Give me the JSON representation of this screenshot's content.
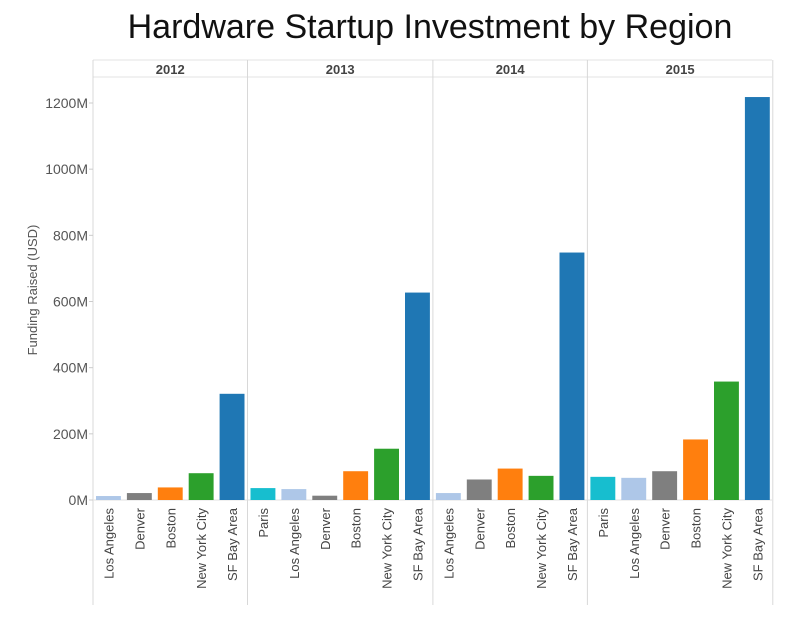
{
  "chart_data": {
    "type": "bar",
    "title": "Hardware Startup Investment by Region",
    "ylabel": "Funding Raised (USD)",
    "ylim": [
      0,
      1200
    ],
    "yticks": [
      "0M",
      "200M",
      "400M",
      "600M",
      "800M",
      "1000M",
      "1200M"
    ],
    "grid": false,
    "panels": [
      {
        "year": "2012",
        "bars": [
          {
            "region": "Los Angeles",
            "value": 12
          },
          {
            "region": "Denver",
            "value": 21
          },
          {
            "region": "Boston",
            "value": 38
          },
          {
            "region": "New York City",
            "value": 81
          },
          {
            "region": "SF Bay Area",
            "value": 321
          }
        ]
      },
      {
        "year": "2013",
        "bars": [
          {
            "region": "Paris",
            "value": 36
          },
          {
            "region": "Los Angeles",
            "value": 33
          },
          {
            "region": "Denver",
            "value": 13
          },
          {
            "region": "Boston",
            "value": 87
          },
          {
            "region": "New York City",
            "value": 155
          },
          {
            "region": "SF Bay Area",
            "value": 627
          }
        ]
      },
      {
        "year": "2014",
        "bars": [
          {
            "region": "Los Angeles",
            "value": 21
          },
          {
            "region": "Denver",
            "value": 62
          },
          {
            "region": "Boston",
            "value": 95
          },
          {
            "region": "New York City",
            "value": 73
          },
          {
            "region": "SF Bay Area",
            "value": 748
          }
        ]
      },
      {
        "year": "2015",
        "bars": [
          {
            "region": "Paris",
            "value": 70
          },
          {
            "region": "Los Angeles",
            "value": 67
          },
          {
            "region": "Denver",
            "value": 87
          },
          {
            "region": "Boston",
            "value": 183
          },
          {
            "region": "New York City",
            "value": 358
          },
          {
            "region": "SF Bay Area",
            "value": 1218
          }
        ]
      }
    ],
    "colors": {
      "Paris": "#17becf",
      "Los Angeles": "#aec7e8",
      "Denver": "#7f7f7f",
      "Boston": "#ff7f0e",
      "New York City": "#2ca02c",
      "SF Bay Area": "#1f77b4"
    }
  }
}
